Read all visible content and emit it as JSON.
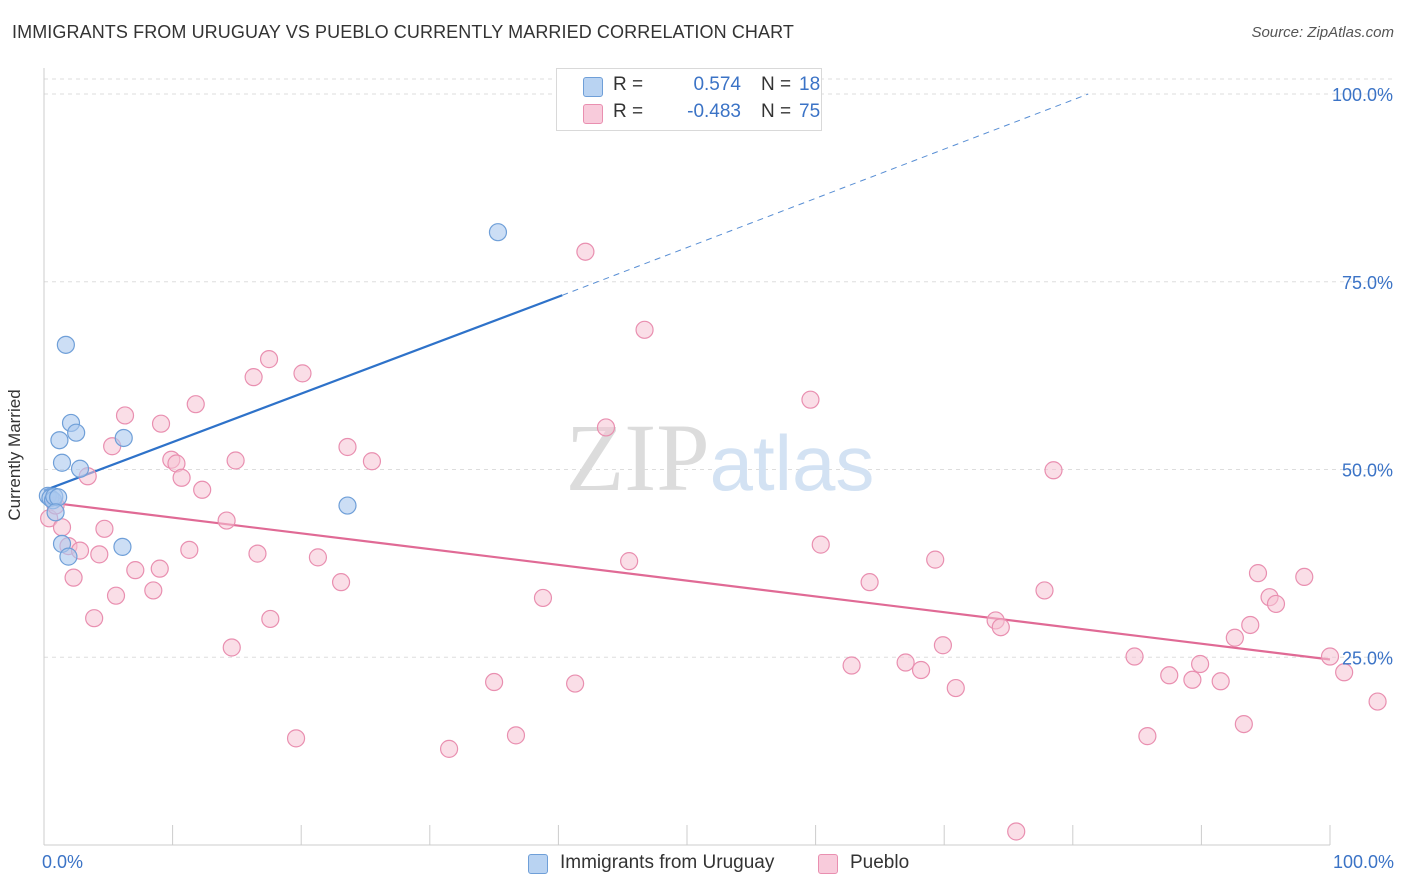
{
  "title": "IMMIGRANTS FROM URUGUAY VS PUEBLO CURRENTLY MARRIED CORRELATION CHART",
  "source": "Source: ZipAtlas.com",
  "watermark": "ZIPatlas",
  "colors": {
    "blue_fill": "#aac8ee",
    "blue_stroke": "#6f9fd8",
    "blue_line": "#2e72c9",
    "pink_fill": "#f6c2d4",
    "pink_stroke": "#e98fb0",
    "pink_line": "#e06a95",
    "tick_label": "#3b73c6",
    "grid": "#dddddd"
  },
  "legend": {
    "rows": [
      {
        "r_label": "R =",
        "r_value": "0.574",
        "n_label": "N =",
        "n_value": "18"
      },
      {
        "r_label": "R =",
        "r_value": "-0.483",
        "n_label": "N =",
        "n_value": "75"
      }
    ]
  },
  "bottom_legend": [
    "Immigrants from Uruguay",
    "Pueblo"
  ],
  "chart_data": {
    "type": "scatter",
    "title": "IMMIGRANTS FROM URUGUAY VS PUEBLO CURRENTLY MARRIED CORRELATION CHART",
    "xlabel": "",
    "ylabel": "Currently Married",
    "xlim": [
      0,
      100
    ],
    "ylim": [
      0,
      102
    ],
    "x_tick_labels": [
      "0.0%",
      "100.0%"
    ],
    "y_ticks": [
      25,
      50,
      75,
      100
    ],
    "y_tick_labels": [
      "25.0%",
      "50.0%",
      "75.0%",
      "100.0%"
    ],
    "grid": true,
    "legend_position": "top-center",
    "series": [
      {
        "name": "Immigrants from Uruguay",
        "r": 0.574,
        "n": 18,
        "points": [
          [
            0.3,
            46.5
          ],
          [
            0.5,
            46.2
          ],
          [
            0.7,
            45.9
          ],
          [
            0.8,
            46.4
          ],
          [
            1.1,
            46.3
          ],
          [
            0.9,
            44.3
          ],
          [
            1.2,
            53.9
          ],
          [
            1.4,
            50.9
          ],
          [
            1.7,
            66.6
          ],
          [
            2.1,
            56.2
          ],
          [
            2.5,
            54.9
          ],
          [
            2.8,
            50.1
          ],
          [
            1.4,
            40.1
          ],
          [
            1.9,
            38.4
          ],
          [
            6.1,
            39.7
          ],
          [
            6.2,
            54.2
          ],
          [
            23.6,
            45.2
          ],
          [
            35.3,
            81.6
          ]
        ],
        "trend": {
          "x0": 0,
          "y0": 47.2,
          "x1": 40.3,
          "y1": 73.2,
          "dash_to_x": 81.2,
          "dash_to_y": 100.0
        }
      },
      {
        "name": "Pueblo",
        "r": -0.483,
        "n": 75,
        "points": [
          [
            0.4,
            43.5
          ],
          [
            0.9,
            45.2
          ],
          [
            1.4,
            42.3
          ],
          [
            1.9,
            39.8
          ],
          [
            2.3,
            35.6
          ],
          [
            2.8,
            39.2
          ],
          [
            3.4,
            49.1
          ],
          [
            3.9,
            30.2
          ],
          [
            4.3,
            38.7
          ],
          [
            4.7,
            42.1
          ],
          [
            5.3,
            53.1
          ],
          [
            5.6,
            33.2
          ],
          [
            6.3,
            57.2
          ],
          [
            7.1,
            36.6
          ],
          [
            8.5,
            33.9
          ],
          [
            9.0,
            36.8
          ],
          [
            9.1,
            56.1
          ],
          [
            9.9,
            51.3
          ],
          [
            10.3,
            50.8
          ],
          [
            10.7,
            48.9
          ],
          [
            11.3,
            39.3
          ],
          [
            11.8,
            58.7
          ],
          [
            12.3,
            47.3
          ],
          [
            14.2,
            43.2
          ],
          [
            14.6,
            26.3
          ],
          [
            14.9,
            51.2
          ],
          [
            16.3,
            62.3
          ],
          [
            16.6,
            38.8
          ],
          [
            17.5,
            64.7
          ],
          [
            17.6,
            30.1
          ],
          [
            19.6,
            14.2
          ],
          [
            20.1,
            62.8
          ],
          [
            21.3,
            38.3
          ],
          [
            23.1,
            35.0
          ],
          [
            23.6,
            53.0
          ],
          [
            25.5,
            51.1
          ],
          [
            35.0,
            21.7
          ],
          [
            36.7,
            14.6
          ],
          [
            38.8,
            32.9
          ],
          [
            31.5,
            12.8
          ],
          [
            41.3,
            21.5
          ],
          [
            42.1,
            79.0
          ],
          [
            45.5,
            37.8
          ],
          [
            46.7,
            68.6
          ],
          [
            43.7,
            55.6
          ],
          [
            59.6,
            59.3
          ],
          [
            60.4,
            40.0
          ],
          [
            62.8,
            23.9
          ],
          [
            64.2,
            35.0
          ],
          [
            67.0,
            24.3
          ],
          [
            68.2,
            23.3
          ],
          [
            69.3,
            38.0
          ],
          [
            69.9,
            26.6
          ],
          [
            70.9,
            20.9
          ],
          [
            74.0,
            29.9
          ],
          [
            74.4,
            29.0
          ],
          [
            75.6,
            1.8
          ],
          [
            77.8,
            33.9
          ],
          [
            78.5,
            49.9
          ],
          [
            84.8,
            25.1
          ],
          [
            85.8,
            14.5
          ],
          [
            87.5,
            22.6
          ],
          [
            89.3,
            22.0
          ],
          [
            89.9,
            24.1
          ],
          [
            91.5,
            21.8
          ],
          [
            92.6,
            27.6
          ],
          [
            93.3,
            16.1
          ],
          [
            93.8,
            29.3
          ],
          [
            94.4,
            36.2
          ],
          [
            95.3,
            33.0
          ],
          [
            95.8,
            32.1
          ],
          [
            98.0,
            35.7
          ],
          [
            100.0,
            25.1
          ],
          [
            101.1,
            23.0
          ],
          [
            103.7,
            19.1
          ]
        ],
        "trend": {
          "x0": 0,
          "y0": 45.7,
          "x1": 100,
          "y1": 24.7
        }
      }
    ]
  }
}
